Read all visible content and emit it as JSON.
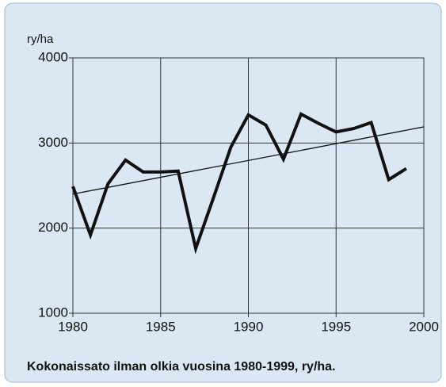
{
  "chart_data": {
    "type": "line",
    "ylabel": "ry/ha",
    "caption": "Kokonaissato ilman olkia vuosina 1980-1999, ry/ha.",
    "x": [
      1980,
      1981,
      1982,
      1983,
      1984,
      1985,
      1986,
      1987,
      1988,
      1989,
      1990,
      1991,
      1992,
      1993,
      1994,
      1995,
      1996,
      1997,
      1998,
      1999
    ],
    "series": [
      {
        "color": "#111111",
        "values": [
          2490,
          1920,
          2520,
          2800,
          2660,
          2660,
          2670,
          1760,
          2350,
          2950,
          3330,
          3210,
          2810,
          3340,
          3230,
          3130,
          3170,
          3240,
          2570,
          2700
        ]
      }
    ],
    "trend": {
      "x": [
        1980,
        2000
      ],
      "values": [
        2400,
        3190
      ],
      "color": "#111111"
    },
    "xlim": [
      1980,
      2000
    ],
    "xticks": [
      1980,
      1985,
      1990,
      1995,
      2000
    ],
    "ylim": [
      1000,
      4000
    ],
    "yticks": [
      1000,
      2000,
      3000,
      4000
    ],
    "grid": true
  }
}
